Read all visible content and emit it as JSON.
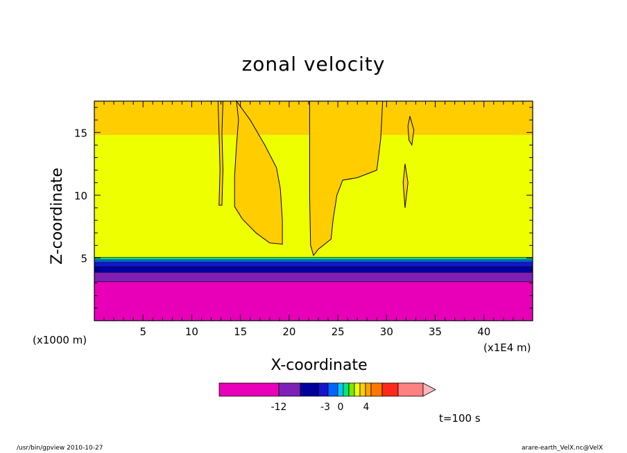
{
  "chart_data": {
    "type": "heatmap",
    "title": "zonal velocity",
    "xlabel": "X-coordinate",
    "ylabel": "Z-coordinate",
    "x_unit": "(x1000 m)",
    "x_scale_note": "(x1E4 m)",
    "time_label": "t=100 s",
    "xlim": [
      0,
      45
    ],
    "ylim": [
      0,
      17.5
    ],
    "x_ticks": [
      "5",
      "10",
      "15",
      "20",
      "25",
      "30",
      "35",
      "40"
    ],
    "x_tick_values": [
      5,
      10,
      15,
      20,
      25,
      30,
      35,
      40
    ],
    "y_ticks": [
      "5",
      "10",
      "15"
    ],
    "y_tick_values": [
      5,
      10,
      15
    ],
    "colorbar": {
      "colors": [
        "#e800b8",
        "#7e1fb6",
        "#00009f",
        "#1515cc",
        "#0066ff",
        "#00c8ff",
        "#00e87e",
        "#7ce800",
        "#eeff00",
        "#ffcd00",
        "#ffa100",
        "#ff7700",
        "#ff2a1a",
        "#ff8080",
        "#ffb8b8"
      ],
      "tick_labels": [
        "-12",
        "-3",
        "0",
        "4"
      ]
    },
    "layers": [
      {
        "z_from": 0,
        "z_to": 3.1,
        "color": "#e800b8"
      },
      {
        "z_from": 3.1,
        "z_to": 3.85,
        "color": "#7e1fb6"
      },
      {
        "z_from": 3.85,
        "z_to": 4.3,
        "color": "#00009f"
      },
      {
        "z_from": 4.3,
        "z_to": 4.65,
        "color": "#1515cc"
      },
      {
        "z_from": 4.65,
        "z_to": 4.8,
        "color": "#0066ff"
      },
      {
        "z_from": 4.8,
        "z_to": 4.9,
        "color": "#00c8ff"
      },
      {
        "z_from": 4.9,
        "z_to": 5.05,
        "color": "#00e87e"
      },
      {
        "z_from": 5.05,
        "z_to": 14.8,
        "color": "#eeff00"
      },
      {
        "z_from": 14.8,
        "z_to": 17.5,
        "color": "#ffcd00"
      }
    ],
    "regions": [
      {
        "color": "#ffcd00",
        "points": [
          [
            14.6,
            17.5
          ],
          [
            16.0,
            16.0
          ],
          [
            17.5,
            14.0
          ],
          [
            18.7,
            12.2
          ],
          [
            19.1,
            10.5
          ],
          [
            19.3,
            8.0
          ],
          [
            19.3,
            6.1
          ],
          [
            18.0,
            6.2
          ],
          [
            16.6,
            7.0
          ],
          [
            15.2,
            8.1
          ],
          [
            14.4,
            9.1
          ],
          [
            14.4,
            11.5
          ],
          [
            14.6,
            14.0
          ],
          [
            14.8,
            16.0
          ]
        ]
      },
      {
        "color": "#ffcd00",
        "points": [
          [
            22.1,
            17.5
          ],
          [
            29.6,
            17.5
          ],
          [
            29.4,
            14.5
          ],
          [
            29.0,
            12.0
          ],
          [
            27.0,
            11.4
          ],
          [
            25.5,
            11.2
          ],
          [
            24.9,
            10.0
          ],
          [
            24.5,
            8.0
          ],
          [
            24.3,
            6.5
          ],
          [
            23.0,
            5.7
          ],
          [
            22.5,
            5.2
          ],
          [
            22.2,
            6.0
          ],
          [
            22.1,
            10.0
          ]
        ]
      },
      {
        "color": "#ffcd00",
        "points": [
          [
            12.7,
            17.5
          ],
          [
            13.2,
            17.5
          ],
          [
            13.1,
            15.0
          ],
          [
            13.2,
            12.0
          ],
          [
            13.1,
            9.2
          ],
          [
            12.8,
            9.2
          ],
          [
            12.9,
            12.0
          ],
          [
            12.8,
            15.0
          ]
        ]
      },
      {
        "color": "#ffcd00",
        "points": [
          [
            32.4,
            16.3
          ],
          [
            32.8,
            15.2
          ],
          [
            32.6,
            14.0
          ],
          [
            32.3,
            14.4
          ],
          [
            32.2,
            15.5
          ]
        ]
      },
      {
        "color": "#ffcd00",
        "points": [
          [
            31.9,
            12.5
          ],
          [
            32.2,
            11.0
          ],
          [
            31.9,
            9.0
          ],
          [
            31.7,
            11.0
          ]
        ]
      }
    ]
  },
  "footer": {
    "left": "/usr/bin/gpview   2010-10-27",
    "right": "arare-earth_VelX.nc@VelX"
  }
}
